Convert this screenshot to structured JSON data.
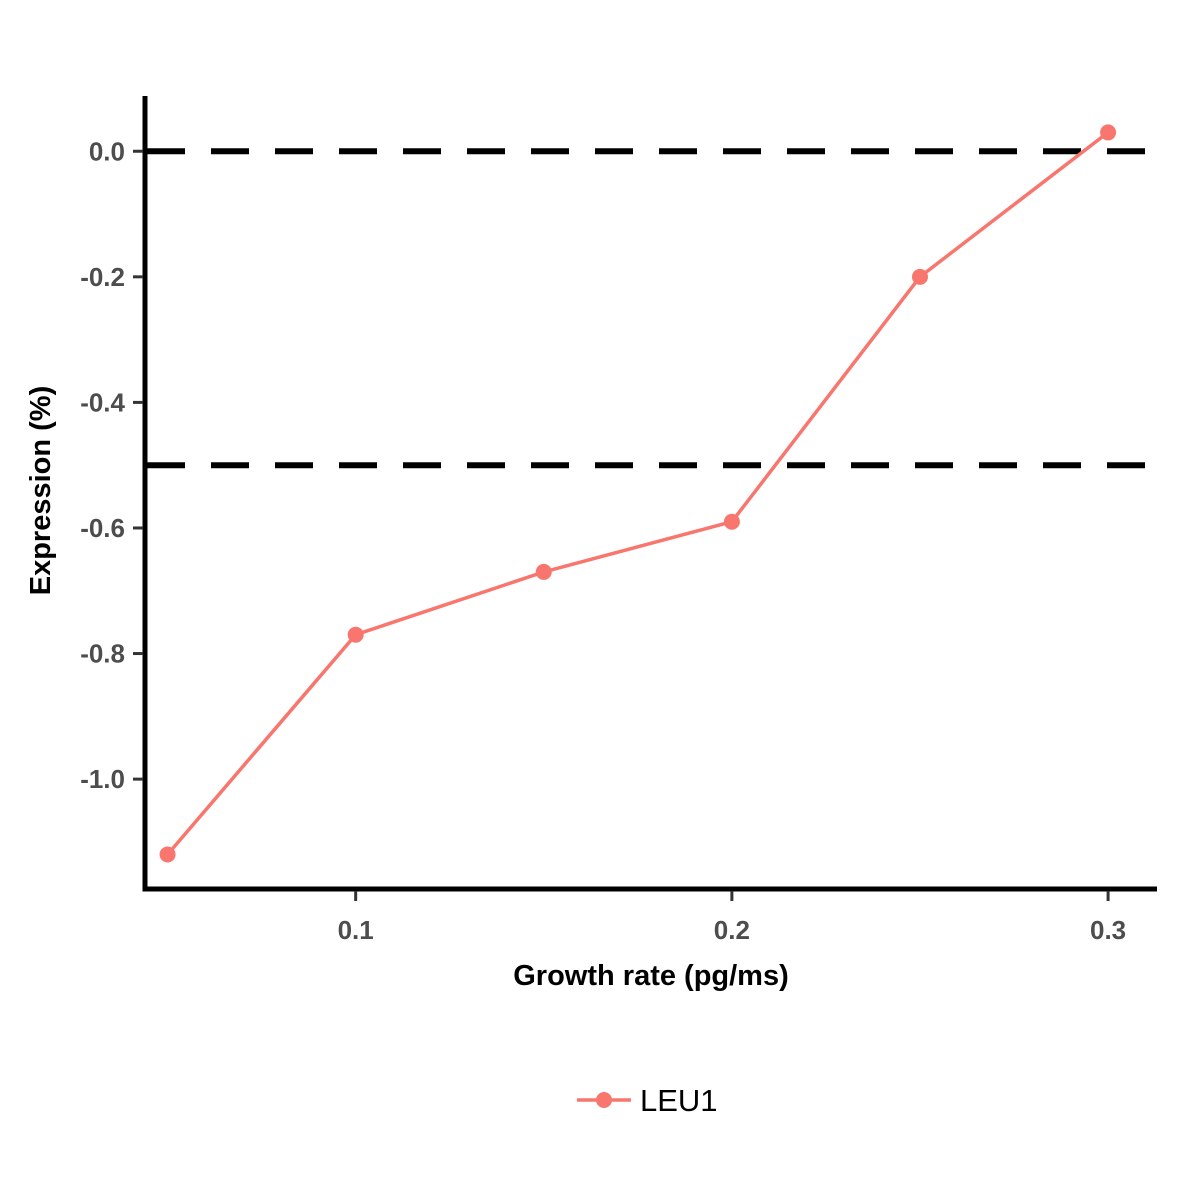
{
  "chart_data": {
    "type": "line",
    "xlabel": "Growth rate (pg/ms)",
    "ylabel": "Expression (%)",
    "xlim": [
      0.044,
      0.313
    ],
    "ylim": [
      -1.175,
      0.088
    ],
    "x_ticks": [
      0.1,
      0.2,
      0.3
    ],
    "x_tick_labels": [
      "0.1",
      "0.2",
      "0.3"
    ],
    "y_ticks": [
      0.0,
      -0.2,
      -0.4,
      -0.6,
      -0.8,
      -1.0
    ],
    "y_tick_labels": [
      "0.0",
      "-0.2",
      "-0.4",
      "-0.6",
      "-0.8",
      "-1.0"
    ],
    "reference_lines": [
      {
        "axis": "y",
        "value": 0.0,
        "style": "dashed",
        "color": "#000000"
      },
      {
        "axis": "y",
        "value": -0.5,
        "style": "dashed",
        "color": "#000000"
      }
    ],
    "series": [
      {
        "name": "LEU1",
        "color": "#F8766D",
        "x": [
          0.05,
          0.1,
          0.15,
          0.2,
          0.25,
          0.3
        ],
        "y": [
          -1.12,
          -0.77,
          -0.67,
          -0.59,
          -0.2,
          0.03
        ]
      }
    ],
    "legend_position": "bottom",
    "grid": false
  }
}
